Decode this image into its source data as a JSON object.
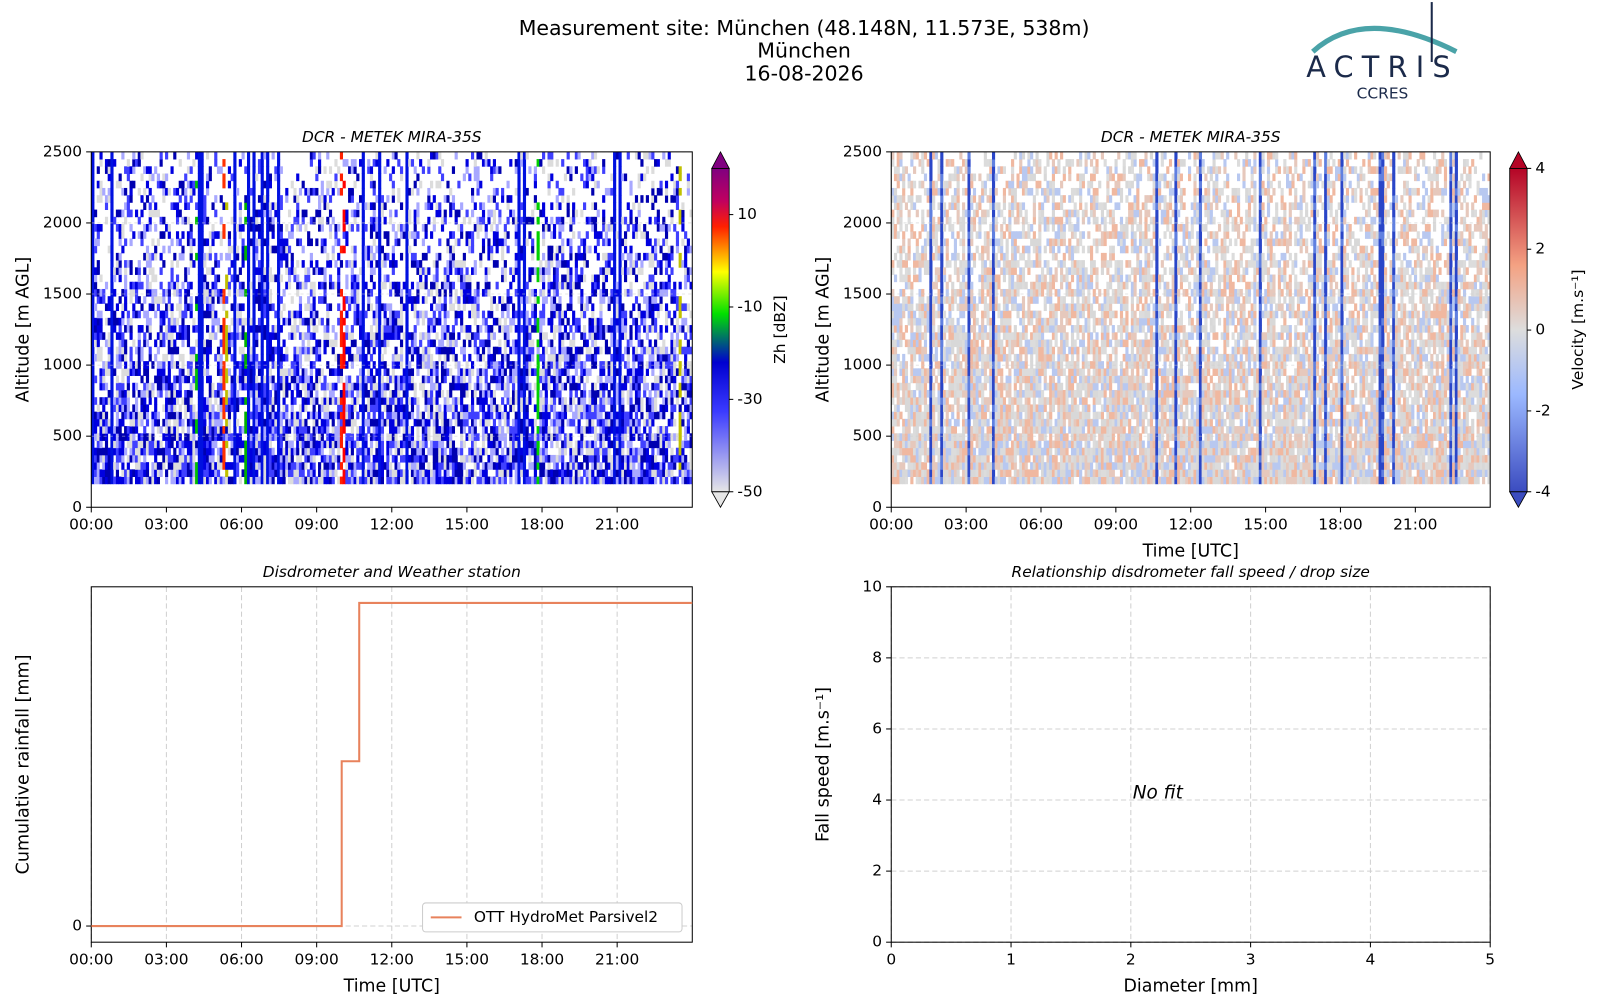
{
  "header": {
    "title_lines": [
      "Measurement site: München (48.148N, 11.573E, 538m)",
      "München",
      "16-08-2026"
    ],
    "logo": {
      "name": "ACTRIS",
      "subname": "CCRES"
    }
  },
  "chart_data": [
    {
      "type": "heatmap",
      "title": "DCR - METEK MIRA-35S",
      "y_label": "Altitude [m AGL]",
      "colormap": "zh",
      "xlim": [
        0,
        24
      ],
      "xticks": [
        {
          "value": 0,
          "label": "00:00"
        },
        {
          "value": 3,
          "label": "03:00"
        },
        {
          "value": 6,
          "label": "06:00"
        },
        {
          "value": 9,
          "label": "09:00"
        },
        {
          "value": 12,
          "label": "12:00"
        },
        {
          "value": 15,
          "label": "15:00"
        },
        {
          "value": 18,
          "label": "18:00"
        },
        {
          "value": 21,
          "label": "21:00"
        }
      ],
      "ylim": [
        0,
        2500
      ],
      "yticks": [
        0,
        500,
        1000,
        1500,
        2000,
        2500
      ],
      "colorbar": {
        "label": "Zh [dBZ]",
        "lim": [
          -50,
          20
        ],
        "ticks": [
          -50,
          -30,
          -10,
          10
        ]
      }
    },
    {
      "type": "heatmap",
      "title": "DCR - METEK MIRA-35S",
      "y_label": "Altitude [m AGL]",
      "x_label": "Time [UTC]",
      "colormap": "velocity",
      "xlim": [
        0,
        24
      ],
      "xticks": [
        {
          "value": 0,
          "label": "00:00"
        },
        {
          "value": 3,
          "label": "03:00"
        },
        {
          "value": 6,
          "label": "06:00"
        },
        {
          "value": 9,
          "label": "09:00"
        },
        {
          "value": 12,
          "label": "12:00"
        },
        {
          "value": 15,
          "label": "15:00"
        },
        {
          "value": 18,
          "label": "18:00"
        },
        {
          "value": 21,
          "label": "21:00"
        }
      ],
      "ylim": [
        0,
        2500
      ],
      "yticks": [
        0,
        500,
        1000,
        1500,
        2000,
        2500
      ],
      "colorbar": {
        "label": "Velocity [m.s⁻¹]",
        "lim": [
          -4,
          4
        ],
        "ticks": [
          -4,
          -2,
          0,
          2,
          4
        ]
      }
    },
    {
      "type": "line",
      "title": "Disdrometer and Weather station",
      "y_label": "Cumulative rainfall [mm]",
      "x_label": "Time [UTC]",
      "xlim": [
        0,
        24
      ],
      "xticks": [
        {
          "value": 0,
          "label": "00:00"
        },
        {
          "value": 3,
          "label": "03:00"
        },
        {
          "value": 6,
          "label": "06:00"
        },
        {
          "value": 9,
          "label": "09:00"
        },
        {
          "value": 12,
          "label": "12:00"
        },
        {
          "value": 15,
          "label": "15:00"
        },
        {
          "value": 18,
          "label": "18:00"
        },
        {
          "value": 21,
          "label": "21:00"
        }
      ],
      "ylim": [
        -0.05,
        1.05
      ],
      "yticks": [
        0
      ],
      "grid": true,
      "legend": "lower right",
      "series": [
        {
          "name": "OTT HydroMet Parsivel2",
          "color": "#e8825c",
          "x": [
            0,
            10.0,
            10.0,
            10.7,
            10.7,
            24
          ],
          "values": [
            0,
            0,
            0.51,
            0.51,
            1.0,
            1.0
          ]
        }
      ]
    },
    {
      "type": "scatter",
      "title": "Relationship disdrometer fall speed / drop size",
      "y_label": "Fall speed [m.s⁻¹]",
      "x_label": "Diameter [mm]",
      "xlim": [
        0,
        5
      ],
      "xticks": [
        0,
        1,
        2,
        3,
        4,
        5
      ],
      "ylim": [
        0,
        10
      ],
      "yticks": [
        0,
        2,
        4,
        6,
        8,
        10
      ],
      "grid": true,
      "annotation": "No fit",
      "series": []
    }
  ]
}
